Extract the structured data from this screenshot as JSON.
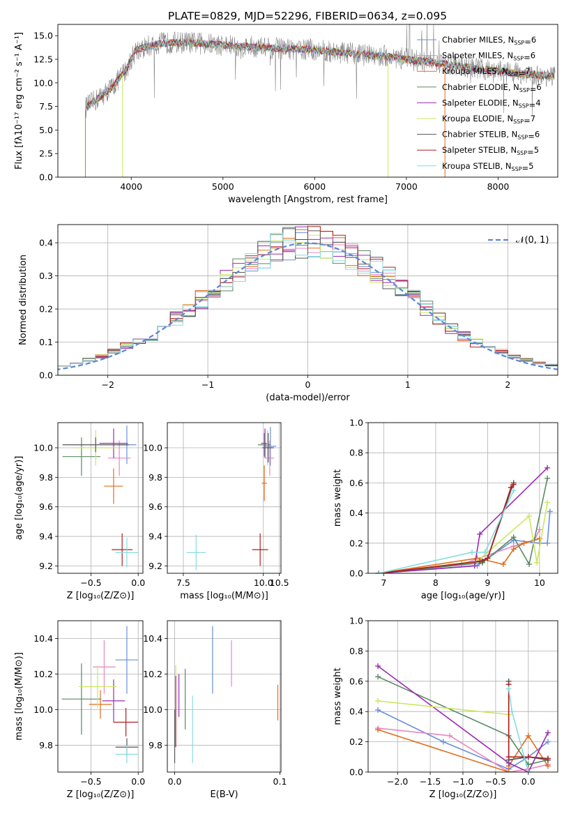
{
  "title": "PLATE=0829, MJD=52296, FIBERID=0634, z=0.095",
  "series": [
    {
      "name": "Chabrier MILES",
      "nssp": "6",
      "color": "#6a8fdc"
    },
    {
      "name": "Salpeter MILES",
      "nssp": "6",
      "color": "#e887bf"
    },
    {
      "name": "Kroupa MILES",
      "nssp": "7",
      "color": "#e06e1c"
    },
    {
      "name": "Chabrier ELODIE",
      "nssp": "6",
      "color": "#5a8a63"
    },
    {
      "name": "Salpeter ELODIE",
      "nssp": "4",
      "color": "#9a2ab4"
    },
    {
      "name": "Kroupa ELODIE",
      "nssp": "7",
      "color": "#c9e85c"
    },
    {
      "name": "Chabrier STELIB",
      "nssp": "6",
      "color": "#555555"
    },
    {
      "name": "Salpeter STELIB",
      "nssp": "5",
      "color": "#b01e1e"
    },
    {
      "name": "Kroupa STELIB",
      "nssp": "5",
      "color": "#86dce0"
    }
  ],
  "chart_data": [
    {
      "id": "spectrum",
      "type": "line",
      "xlabel": "wavelength [Angstrom, rest frame]",
      "ylabel": "Flux [fλ10⁻¹⁷ erg cm⁻² s⁻¹ A⁻¹]",
      "xlim": [
        3200,
        8650
      ],
      "ylim": [
        0,
        16.2
      ],
      "xticks": [
        4000,
        5000,
        6000,
        7000,
        8000
      ],
      "yticks": [
        0.0,
        2.5,
        5.0,
        7.5,
        10.0,
        12.5,
        15.0
      ],
      "data_color": "#888888",
      "continuum": [
        [
          3500,
          7.4
        ],
        [
          3650,
          8.4
        ],
        [
          3800,
          9.6
        ],
        [
          3950,
          11.5
        ],
        [
          4050,
          13.5
        ],
        [
          4300,
          14.2
        ],
        [
          4600,
          14.3
        ],
        [
          5000,
          14.0
        ],
        [
          5500,
          13.7
        ],
        [
          6000,
          13.5
        ],
        [
          6500,
          13.0
        ],
        [
          6800,
          12.8
        ],
        [
          7000,
          12.5
        ],
        [
          7400,
          12.0
        ],
        [
          7800,
          11.5
        ],
        [
          8200,
          11.0
        ],
        [
          8600,
          10.7
        ]
      ]
    },
    {
      "id": "residuals",
      "type": "histogram",
      "xlabel": "(data-model)/error",
      "ylabel": "Normed distribution",
      "xlim": [
        -2.5,
        2.5
      ],
      "ylim": [
        0,
        0.455
      ],
      "xticks": [
        -2,
        -1,
        0,
        1,
        2
      ],
      "yticks": [
        0.0,
        0.1,
        0.2,
        0.3,
        0.4
      ],
      "bins": [
        -2.5,
        2.5,
        40
      ],
      "normal_label": "𝒩(0, 1)",
      "normal_color": "#5b86d6"
    },
    {
      "id": "age_vs_Z",
      "type": "errorbar",
      "xlabel": "Z [log₁₀(Z/Z⊙)]",
      "ylabel": "age  [log₁₀(age/yr)]",
      "xlim": [
        -0.85,
        0.05
      ],
      "ylim": [
        9.15,
        10.17
      ],
      "xticks": [
        -0.5,
        0.0
      ],
      "xticklabels": [
        "−0.5",
        "0.0"
      ],
      "yticks": [
        9.2,
        9.4,
        9.6,
        9.8,
        10.0
      ],
      "points": [
        {
          "s": 0,
          "x": -0.12,
          "xe": 0.1,
          "y": 10.02,
          "ye": 0.13
        },
        {
          "s": 1,
          "x": -0.2,
          "xe": 0.12,
          "y": 9.93,
          "ye": 0.12
        },
        {
          "s": 2,
          "x": -0.26,
          "xe": 0.1,
          "y": 9.74,
          "ye": 0.12
        },
        {
          "s": 3,
          "x": -0.6,
          "xe": 0.2,
          "y": 9.94,
          "ye": 0.13
        },
        {
          "s": 4,
          "x": -0.26,
          "xe": 0.15,
          "y": 10.03,
          "ye": 0.1
        },
        {
          "s": 5,
          "x": -0.45,
          "xe": 0.22,
          "y": 10.0,
          "ye": 0.12
        },
        {
          "s": 6,
          "x": -0.45,
          "xe": 0.35,
          "y": 10.02,
          "ye": 0.05
        },
        {
          "s": 7,
          "x": -0.17,
          "xe": 0.11,
          "y": 9.31,
          "ye": 0.11
        },
        {
          "s": 8,
          "x": -0.12,
          "xe": 0.12,
          "y": 9.29,
          "ye": 0.1
        }
      ]
    },
    {
      "id": "age_vs_mass",
      "type": "errorbar",
      "xlabel": "mass [log₁₀(M/M⊙)]",
      "ylabel": "",
      "xlim": [
        7.0,
        10.55
      ],
      "ylim": [
        9.15,
        10.17
      ],
      "xticks": [
        7.5,
        10.0,
        10.5
      ],
      "xticklabels": [
        "7.5",
        "10.0",
        "10.5"
      ],
      "yticks": [
        9.2,
        9.4,
        9.6,
        9.8,
        10.0
      ],
      "points": [
        {
          "s": 0,
          "x": 10.22,
          "xe": 0.18,
          "y": 10.01,
          "ye": 0.13
        },
        {
          "s": 1,
          "x": 10.2,
          "xe": 0.14,
          "y": 9.93,
          "ye": 0.12
        },
        {
          "s": 2,
          "x": 10.03,
          "xe": 0.08,
          "y": 9.76,
          "ye": 0.12
        },
        {
          "s": 3,
          "x": 10.03,
          "xe": 0.2,
          "y": 10.02,
          "ye": 0.08
        },
        {
          "s": 4,
          "x": 10.05,
          "xe": 0.12,
          "y": 10.03,
          "ye": 0.1
        },
        {
          "s": 5,
          "x": 10.13,
          "xe": 0.13,
          "y": 10.0,
          "ye": 0.12
        },
        {
          "s": 6,
          "x": 10.15,
          "xe": 0.18,
          "y": 10.0,
          "ye": 0.1
        },
        {
          "s": 7,
          "x": 9.9,
          "xe": 0.25,
          "y": 9.31,
          "ye": 0.11
        },
        {
          "s": 8,
          "x": 7.9,
          "xe": 0.3,
          "y": 9.29,
          "ye": 0.12
        }
      ]
    },
    {
      "id": "weight_vs_age",
      "type": "line",
      "xlabel": "age  [log₁₀(age/yr)]",
      "ylabel": "mass weight",
      "xlim": [
        6.7,
        10.35
      ],
      "ylim": [
        0,
        1.0
      ],
      "xticks": [
        7,
        8,
        9,
        10
      ],
      "yticks": [
        0.0,
        0.2,
        0.4,
        0.6,
        0.8,
        1.0
      ],
      "series": [
        {
          "s": 0,
          "x": [
            6.9,
            8.8,
            9.5,
            10.0,
            10.15,
            10.2
          ],
          "y": [
            0.0,
            0.05,
            0.22,
            0.2,
            0.2,
            0.41
          ]
        },
        {
          "s": 1,
          "x": [
            6.9,
            8.5,
            9.5,
            9.9,
            10.0
          ],
          "y": [
            0.0,
            0.06,
            0.18,
            0.22,
            0.29
          ]
        },
        {
          "s": 2,
          "x": [
            6.9,
            8.8,
            9.3,
            9.5,
            9.7,
            10.0
          ],
          "y": [
            0.0,
            0.1,
            0.06,
            0.16,
            0.2,
            0.23
          ]
        },
        {
          "s": 3,
          "x": [
            6.9,
            8.9,
            9.5,
            9.8,
            10.15
          ],
          "y": [
            0.0,
            0.07,
            0.24,
            0.06,
            0.63
          ]
        },
        {
          "s": 4,
          "x": [
            6.9,
            8.75,
            8.85,
            10.15
          ],
          "y": [
            0.0,
            0.05,
            0.26,
            0.7
          ]
        },
        {
          "s": 5,
          "x": [
            6.9,
            8.8,
            9.8,
            9.95,
            10.15
          ],
          "y": [
            0.0,
            0.08,
            0.38,
            0.07,
            0.47
          ]
        },
        {
          "s": 6,
          "x": [
            6.9,
            8.9,
            9.0,
            9.5
          ],
          "y": [
            0.0,
            0.08,
            0.1,
            0.6
          ]
        },
        {
          "s": 7,
          "x": [
            6.9,
            8.85,
            9.0,
            9.45,
            9.5
          ],
          "y": [
            0.0,
            0.08,
            0.1,
            0.57,
            0.59
          ]
        },
        {
          "s": 8,
          "x": [
            6.9,
            8.7,
            8.95,
            9.5
          ],
          "y": [
            0.0,
            0.14,
            0.14,
            0.55
          ]
        }
      ]
    },
    {
      "id": "mass_vs_Z",
      "type": "errorbar",
      "xlabel": "Z [log₁₀(Z/Z⊙)]",
      "ylabel": "mass [log₁₀(M/M⊙)]",
      "xlim": [
        -0.85,
        0.05
      ],
      "ylim": [
        9.65,
        10.5
      ],
      "xticks": [
        -0.5,
        0.0
      ],
      "xticklabels": [
        "−0.5",
        "0.0"
      ],
      "yticks": [
        9.8,
        10.0,
        10.2,
        10.4
      ],
      "points": [
        {
          "s": 0,
          "x": -0.12,
          "xe": 0.12,
          "y": 10.28,
          "ye": 0.19
        },
        {
          "s": 1,
          "x": -0.36,
          "xe": 0.12,
          "y": 10.24,
          "ye": 0.15
        },
        {
          "s": 2,
          "x": -0.4,
          "xe": 0.12,
          "y": 10.03,
          "ye": 0.08
        },
        {
          "s": 3,
          "x": -0.6,
          "xe": 0.21,
          "y": 10.06,
          "ye": 0.2
        },
        {
          "s": 4,
          "x": -0.26,
          "xe": 0.12,
          "y": 10.05,
          "ye": 0.12
        },
        {
          "s": 5,
          "x": -0.43,
          "xe": 0.2,
          "y": 10.13,
          "ye": 0.12
        },
        {
          "s": 6,
          "x": -0.12,
          "xe": 0.12,
          "y": 9.79,
          "ye": 0.05
        },
        {
          "s": 7,
          "x": -0.13,
          "xe": 0.13,
          "y": 9.93,
          "ye": 0.08
        },
        {
          "s": 8,
          "x": -0.12,
          "xe": 0.12,
          "y": 9.75,
          "ye": 0.05
        }
      ]
    },
    {
      "id": "mass_vs_EBV",
      "type": "errorbar",
      "xlabel": "E(B-V)",
      "ylabel": "",
      "xlim": [
        -0.007,
        0.101
      ],
      "ylim": [
        9.65,
        10.5
      ],
      "xticks": [
        0.0,
        0.1
      ],
      "xticklabels": [
        "0.0",
        "0.1"
      ],
      "yticks": [
        9.8,
        10.0,
        10.2,
        10.4
      ],
      "points": [
        {
          "s": 0,
          "x": 0.036,
          "xe": 0,
          "y": 10.28,
          "ye": 0.19
        },
        {
          "s": 1,
          "x": 0.054,
          "xe": 0,
          "y": 10.26,
          "ye": 0.13
        },
        {
          "s": 2,
          "x": 0.098,
          "xe": 0,
          "y": 10.04,
          "ye": 0.1
        },
        {
          "s": 3,
          "x": 0.01,
          "xe": 0,
          "y": 10.06,
          "ye": 0.17
        },
        {
          "s": 4,
          "x": 0.004,
          "xe": 0,
          "y": 10.08,
          "ye": 0.12
        },
        {
          "s": 5,
          "x": 0.001,
          "xe": 0,
          "y": 10.12,
          "ye": 0.13
        },
        {
          "s": 6,
          "x": 0.0,
          "xe": 0,
          "y": 9.85,
          "ye": 0.15
        },
        {
          "s": 7,
          "x": 0.001,
          "xe": 0,
          "y": 9.99,
          "ye": 0.2
        },
        {
          "s": 8,
          "x": 0.017,
          "xe": 0,
          "y": 9.89,
          "ye": 0.19
        }
      ]
    },
    {
      "id": "weight_vs_Z",
      "type": "line",
      "xlabel": "Z [log₁₀(Z/Z⊙)]",
      "ylabel": "mass weight",
      "xlim": [
        -2.45,
        0.45
      ],
      "ylim": [
        0,
        1.0
      ],
      "xticks": [
        -2.0,
        -1.5,
        -1.0,
        -0.5,
        0.0
      ],
      "xticklabels": [
        "−2.0",
        "−1.5",
        "−1.0",
        "−0.5",
        "0.0"
      ],
      "yticks": [
        0.0,
        0.2,
        0.4,
        0.6,
        0.8,
        1.0
      ],
      "series": [
        {
          "s": 0,
          "x": [
            -2.3,
            -1.3,
            -0.3,
            0.0,
            0.3
          ],
          "y": [
            0.41,
            0.2,
            0.02,
            0.1,
            0.2
          ]
        },
        {
          "s": 1,
          "x": [
            -2.3,
            -1.2,
            -0.3,
            0.0,
            0.3
          ],
          "y": [
            0.29,
            0.24,
            0.0,
            0.02,
            0.05
          ]
        },
        {
          "s": 2,
          "x": [
            -2.3,
            -0.3,
            -0.3,
            0.0,
            0.3
          ],
          "y": [
            0.28,
            0.0,
            0.04,
            0.24,
            0.04
          ]
        },
        {
          "s": 3,
          "x": [
            -2.3,
            -0.3,
            0.0,
            0.3
          ],
          "y": [
            0.63,
            0.24,
            0.05,
            0.08
          ]
        },
        {
          "s": 4,
          "x": [
            -2.3,
            -0.3,
            0.0,
            0.3
          ],
          "y": [
            0.7,
            0.06,
            0.0,
            0.26
          ]
        },
        {
          "s": 5,
          "x": [
            -2.3,
            -0.3
          ],
          "y": [
            0.47,
            0.38
          ]
        },
        {
          "s": 6,
          "x": [
            -0.3,
            -0.3,
            0.0,
            0.3
          ],
          "y": [
            0.6,
            0.08,
            0.1,
            0.08
          ]
        },
        {
          "s": 7,
          "x": [
            -0.3,
            -0.3,
            0.0,
            0.3
          ],
          "y": [
            0.58,
            0.1,
            0.1,
            0.09
          ]
        },
        {
          "s": 8,
          "x": [
            -0.3,
            -0.25,
            0.0
          ],
          "y": [
            0.55,
            0.4,
            0.0
          ]
        }
      ]
    }
  ]
}
